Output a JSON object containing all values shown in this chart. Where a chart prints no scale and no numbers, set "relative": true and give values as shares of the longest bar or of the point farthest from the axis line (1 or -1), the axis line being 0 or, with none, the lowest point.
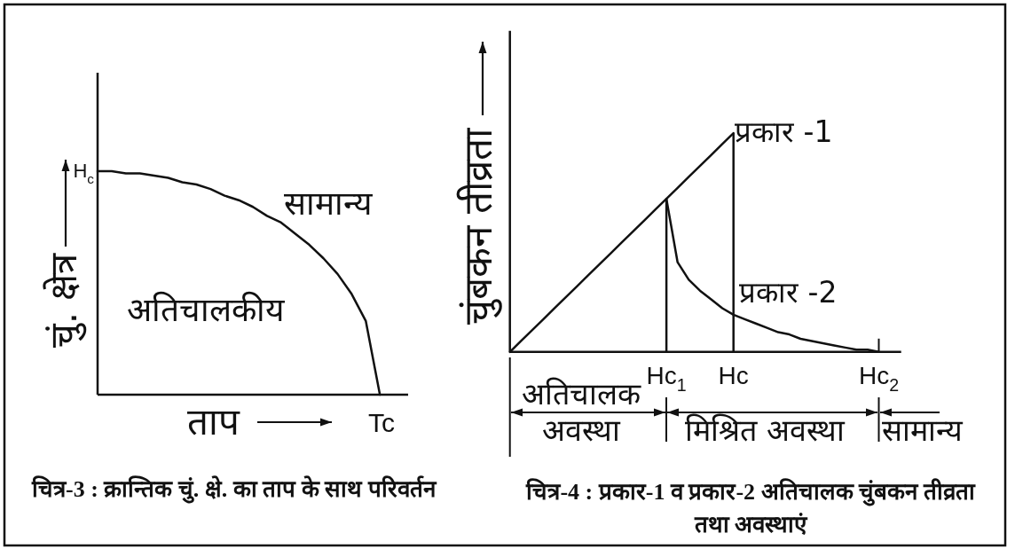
{
  "chart_data": [
    {
      "type": "line",
      "title": "चित्र-3 : क्रान्तिक चुं. क्षे. का ताप के साथ परिवर्तन",
      "xlabel": "ताप",
      "ylabel": "चुं. क्षेत्र",
      "relative": true,
      "color": "#111111",
      "categories": [
        null,
        null,
        null,
        null,
        null,
        null,
        null,
        null,
        null,
        null,
        null,
        null,
        null,
        null,
        null,
        null,
        null,
        null,
        null,
        null,
        null,
        null,
        null
      ],
      "values": [
        1,
        1,
        0.99,
        0.99,
        0.98,
        0.97,
        0.95,
        0.94,
        0.92,
        0.89,
        0.87,
        0.84,
        0.8,
        0.77,
        0.72,
        0.67,
        0.61,
        0.54,
        0.45,
        0.33,
        0,
        null,
        null
      ],
      "annotations": [
        "H$_{c}$",
        "सामान्य",
        "अतिचालकीय",
        "Tc"
      ]
    },
    {
      "type": "line",
      "title": "चित्र-4 : प्रकार-1 व प्रकार-2 अतिचालक चुंबकन तीव्रता तथा अवस्थाएं",
      "ylabel": "चुंबकन तीव्रता",
      "relative": true,
      "categories": [
        null,
        null,
        null,
        null,
        null,
        null,
        null,
        null,
        null,
        null,
        null,
        null,
        null,
        null,
        "Hc$_{1}$",
        null,
        null,
        null,
        null,
        null,
        "Hc",
        null,
        null,
        null,
        null,
        null,
        null,
        null,
        null,
        null,
        null,
        null,
        null,
        "Hc$_{2}$",
        null,
        null
      ],
      "series": [
        {
          "name": "प्रकार -1",
          "color": "#111111",
          "values": [
            0,
            0.05,
            0.1,
            0.15,
            0.2,
            0.25,
            0.3,
            0.35,
            0.4,
            0.45,
            0.5,
            0.55,
            0.6,
            0.65,
            0.7,
            0.75,
            0.8,
            0.85,
            0.9,
            0.95,
            1,
            null,
            null,
            null,
            null,
            null,
            null,
            null,
            null,
            null,
            null,
            null,
            null,
            null,
            null,
            null
          ]
        },
        {
          "name": "प्रकार -2",
          "color": "#111111",
          "values": [
            null,
            null,
            null,
            null,
            null,
            null,
            null,
            null,
            null,
            null,
            null,
            null,
            null,
            null,
            0.7,
            0.41,
            0.33,
            0.28,
            0.24,
            0.2,
            0.17,
            0.15,
            0.13,
            0.11,
            0.09,
            0.08,
            0.06,
            0.05,
            0.04,
            0.03,
            0.02,
            0.01,
            0.01,
            0,
            null,
            null
          ]
        }
      ],
      "ref_lines": [
        {
          "axis": "x",
          "value": "Hc$_{1}$"
        },
        {
          "axis": "x",
          "value": "Hc"
        }
      ],
      "annotations": [
        "अतिचालक अवस्था",
        "मिश्रित अवस्था",
        "सामान्य"
      ]
    }
  ]
}
